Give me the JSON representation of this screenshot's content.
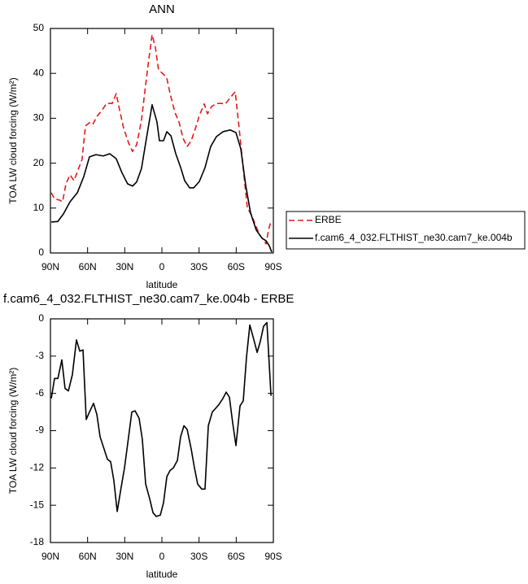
{
  "chart_data": [
    {
      "type": "line",
      "title": "ANN",
      "x_label": "latitude",
      "y_label": "TOA LW cloud forcing (W/m²)",
      "xlim": [
        90,
        -90
      ],
      "xticks": [
        {
          "value": 90,
          "label": "90N"
        },
        {
          "value": 60,
          "label": "60N"
        },
        {
          "value": 30,
          "label": "30N"
        },
        0,
        {
          "value": -30,
          "label": "30S"
        },
        {
          "value": -60,
          "label": "60S"
        },
        {
          "value": -90,
          "label": "90S"
        }
      ],
      "ylim": [
        0,
        50
      ],
      "yticks": [
        0,
        10,
        20,
        30,
        40,
        50
      ],
      "legend": "right",
      "series": [
        {
          "name": "ERBE",
          "color": "#e41a1c",
          "dashed": true,
          "x": [
            89.3,
            86.7,
            82.8,
            80.2,
            77.5,
            74.2,
            71,
            67.7,
            64.5,
            61.7,
            58.5,
            55.8,
            52.5,
            48.6,
            44.7,
            40.1,
            36.9,
            34.2,
            31,
            26.9,
            23.7,
            20.4,
            16.5,
            13.8,
            10.5,
            7.9,
            5.3,
            2.7,
            -0.5,
            -3.8,
            -6.6,
            -10.5,
            -13.8,
            -17.1,
            -20.4,
            -23.7,
            -27,
            -30.2,
            -34.2,
            -36.8,
            -40.1,
            -44,
            -47.9,
            -51.3,
            -55.2,
            -59.2,
            -62.4,
            -65.7,
            -69,
            -72.3,
            -75.6,
            -78.9,
            -82.1,
            -84.1,
            -86.1,
            -88.1
          ],
          "values": [
            13.4,
            12,
            11.8,
            11.4,
            15.4,
            17.4,
            16.1,
            18.5,
            20.8,
            28.3,
            29,
            28.6,
            30.4,
            31.7,
            33.3,
            33.3,
            35.5,
            31.9,
            27.9,
            24.5,
            22.6,
            24.1,
            29.5,
            35.9,
            43.3,
            48.6,
            45.8,
            40.8,
            40,
            39.1,
            35.5,
            31.3,
            29.2,
            25.5,
            23.7,
            25,
            27.7,
            30.6,
            33.2,
            31,
            32.6,
            33.3,
            33.3,
            33.2,
            34.6,
            35.9,
            27.7,
            18.8,
            10,
            8.5,
            6.2,
            4,
            2.9,
            2,
            5.1,
            7.2
          ]
        },
        {
          "name": "f.cam6_4_032.FLTHIST_ne30.cam7_ke.004b",
          "color": "#000000",
          "dashed": false,
          "x": [
            89.3,
            84.1,
            79.5,
            74.2,
            68.3,
            63.1,
            58.5,
            53.3,
            47.4,
            42.1,
            36.9,
            32.3,
            27.7,
            23.7,
            20.4,
            16.5,
            12.5,
            7.9,
            4,
            2,
            -1.3,
            -4,
            -7.3,
            -11.2,
            -15.2,
            -18.4,
            -22.4,
            -25.7,
            -30.2,
            -34.8,
            -39.4,
            -44,
            -49.3,
            -55.2,
            -59.8,
            -63.7,
            -67.7,
            -71.6,
            -76.2,
            -80.8,
            -84.1,
            -86.7,
            -88.7
          ],
          "values": [
            6.9,
            7,
            8.7,
            11.4,
            13.4,
            17,
            21.4,
            21.9,
            21.6,
            22.1,
            21,
            17.9,
            15.4,
            14.9,
            15.8,
            18.8,
            25.5,
            33,
            29.2,
            25,
            25,
            27,
            26.1,
            22.1,
            19,
            16.1,
            14.5,
            14.5,
            15.9,
            19,
            23.7,
            25.9,
            27,
            27.4,
            26.8,
            23.2,
            15,
            8.9,
            5.1,
            3.3,
            2.7,
            1.6,
            0.2
          ]
        }
      ]
    },
    {
      "type": "line",
      "title": "f.cam6_4_032.FLTHIST_ne30.cam7_ke.004b - ERBE",
      "x_label": "latitude",
      "y_label": "TOA LW cloud forcing (W/m²)",
      "xlim": [
        90,
        -90
      ],
      "xticks": [
        {
          "value": 90,
          "label": "90N"
        },
        {
          "value": 60,
          "label": "60N"
        },
        {
          "value": 30,
          "label": "30N"
        },
        0,
        {
          "value": -30,
          "label": "30S"
        },
        {
          "value": -60,
          "label": "60S"
        },
        {
          "value": -90,
          "label": "90S"
        }
      ],
      "ylim": [
        -18,
        0
      ],
      "yticks": [
        -18,
        -15,
        -12,
        -9,
        -6,
        -3,
        0
      ],
      "series": [
        {
          "color": "#000000",
          "dashed": false,
          "x": [
            89.3,
            86.7,
            84,
            80.8,
            78.2,
            75.5,
            72.3,
            69,
            66.3,
            63.7,
            61.1,
            58.5,
            55.2,
            52.5,
            49.9,
            46.6,
            44,
            41.4,
            38.8,
            36.1,
            32.8,
            30.2,
            26.9,
            24.3,
            21.7,
            18.4,
            15.8,
            13.1,
            9.8,
            7.2,
            4.6,
            1.3,
            -1.3,
            -4,
            -6.6,
            -9.2,
            -12.5,
            -15.1,
            -17.8,
            -20.4,
            -23.7,
            -26.3,
            -28.9,
            -32.2,
            -34.8,
            -37.5,
            -40.7,
            -43.4,
            -46,
            -49.3,
            -51.9,
            -54.5,
            -57.2,
            -59.8,
            -63.1,
            -65.7,
            -68.3,
            -71,
            -74.3,
            -76.9,
            -79.5,
            -82.1,
            -84.8,
            -88.1
          ],
          "values": [
            -6.4,
            -4.8,
            -4.8,
            -3.3,
            -5.6,
            -5.8,
            -4.5,
            -1.7,
            -2.6,
            -2.5,
            -8.1,
            -7.5,
            -6.8,
            -7.7,
            -9.5,
            -10.5,
            -11.3,
            -11.5,
            -13,
            -15.5,
            -13.5,
            -12,
            -9.5,
            -7.5,
            -7.4,
            -8,
            -9.7,
            -13.3,
            -14.5,
            -15.6,
            -15.9,
            -15.8,
            -14.8,
            -12.7,
            -12.2,
            -12,
            -11.4,
            -9.5,
            -8.6,
            -8.9,
            -10.5,
            -12,
            -13.3,
            -13.7,
            -13.7,
            -8.6,
            -7.5,
            -7.2,
            -6.9,
            -6.4,
            -5.9,
            -6.3,
            -8.4,
            -10.2,
            -7,
            -6.6,
            -3.1,
            -0.5,
            -1.7,
            -2.7,
            -1.8,
            -0.6,
            -0.3,
            -6.2
          ]
        }
      ]
    }
  ]
}
